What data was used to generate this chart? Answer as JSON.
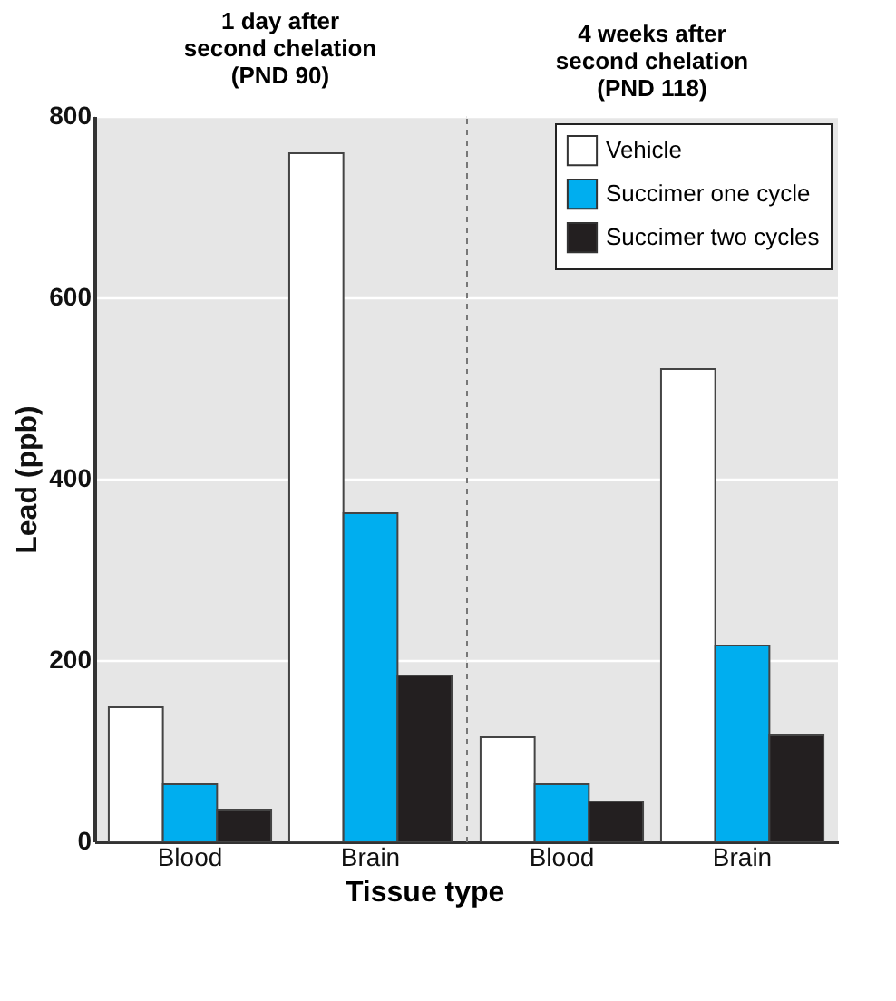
{
  "chart_data": [
    {
      "type": "bar",
      "title": "1 day after\nsecond chelation\n(PND 90)",
      "xlabel": "Tissue type",
      "ylabel": "Lead (ppb)",
      "categories": [
        "Blood",
        "Brain"
      ],
      "series": [
        {
          "color": "#ffffff",
          "values": [
            148,
            759
          ]
        },
        {
          "color": "#00aeef",
          "values": [
            63,
            362
          ]
        },
        {
          "color": "#231f20",
          "values": [
            35,
            183
          ]
        }
      ],
      "ylim": [
        0,
        800
      ],
      "yticks": [
        0,
        200,
        400,
        600,
        800
      ],
      "grid": "y",
      "legend": false
    },
    {
      "type": "bar",
      "title": "4 weeks after\nsecond chelation\n(PND 118)",
      "categories": [
        "Blood",
        "Brain"
      ],
      "series": [
        {
          "name": "Vehicle",
          "color": "#ffffff",
          "values": [
            115,
            521
          ]
        },
        {
          "name": "Succimer one cycle",
          "color": "#00aeef",
          "values": [
            63,
            216
          ]
        },
        {
          "name": "Succimer two cycles",
          "color": "#231f20",
          "values": [
            44,
            117
          ]
        }
      ],
      "ylim": [
        0,
        800
      ],
      "yticks": [
        0,
        200,
        400,
        600,
        800
      ],
      "grid": "y",
      "legend": "top right",
      "tick_labels": "x"
    }
  ]
}
